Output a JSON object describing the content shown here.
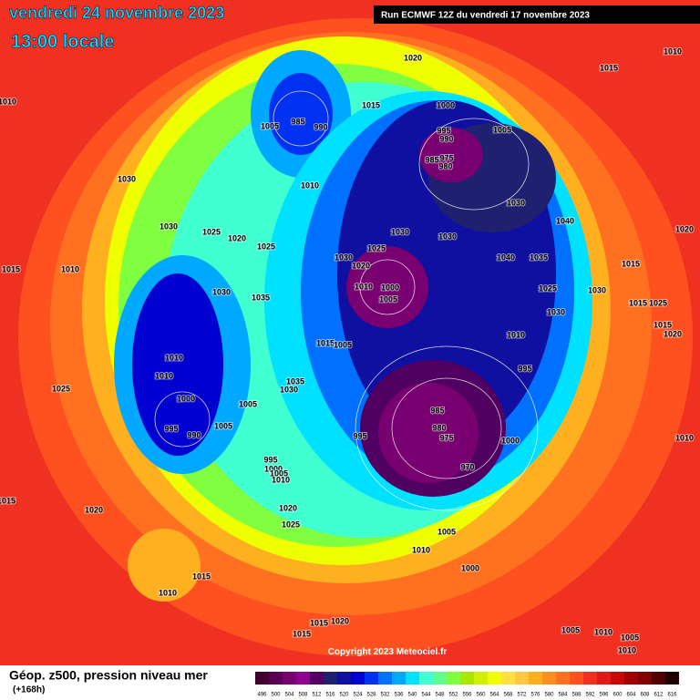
{
  "header": {
    "date": "vendredi 24 novembre 2023",
    "time": "13:00 locale",
    "run": "Run ECMWF 12Z du vendredi 17 novembre 2023"
  },
  "pressure_labels": [
    1020,
    1015,
    1010,
    1010,
    985,
    990,
    1005,
    1015,
    1000,
    995,
    990,
    1005,
    985,
    975,
    980,
    1030,
    1010,
    1030,
    1040,
    1030,
    1025,
    1020,
    1025,
    1030,
    1030,
    1025,
    1020,
    1030,
    1020,
    1040,
    1035,
    1015,
    1010,
    1015,
    1030,
    1035,
    1010,
    1000,
    1005,
    1025,
    1030,
    1030,
    1015,
    1025,
    1015,
    1005,
    1010,
    1015,
    1020,
    1010,
    1010,
    995,
    1035,
    1030,
    1025,
    1000,
    1005,
    985,
    980,
    975,
    995,
    1000,
    970,
    995,
    990,
    1005,
    995,
    1000,
    1005,
    1010,
    1010,
    1020,
    1025,
    1020,
    1015,
    1005,
    1010,
    1000,
    1015,
    1010,
    1015,
    1020,
    1015,
    1005,
    1010,
    1005,
    1010
  ],
  "copyright": "Copyright 2023 Meteociel.fr",
  "footer": {
    "title": "Géop. z500, pression niveau mer",
    "lead": "(+168h)"
  },
  "scale": {
    "values": [
      496,
      500,
      504,
      508,
      512,
      516,
      520,
      524,
      528,
      532,
      536,
      540,
      544,
      548,
      552,
      556,
      560,
      564,
      568,
      572,
      576,
      580,
      584,
      588,
      592,
      596,
      600,
      604,
      608,
      612,
      616
    ],
    "colors": [
      "#400030",
      "#5a0050",
      "#780070",
      "#900090",
      "#500060",
      "#202070",
      "#1010a0",
      "#0000d0",
      "#0030f0",
      "#0070ff",
      "#00a8ff",
      "#00e0ff",
      "#40ffd0",
      "#60ff90",
      "#80ff40",
      "#a8e800",
      "#d0f000",
      "#f0ff00",
      "#ffe040",
      "#ffc840",
      "#ffb020",
      "#ff9020",
      "#ff7020",
      "#ff5020",
      "#f03020",
      "#e01818",
      "#c80808",
      "#a00000",
      "#800000",
      "#500000",
      "#200000"
    ]
  }
}
